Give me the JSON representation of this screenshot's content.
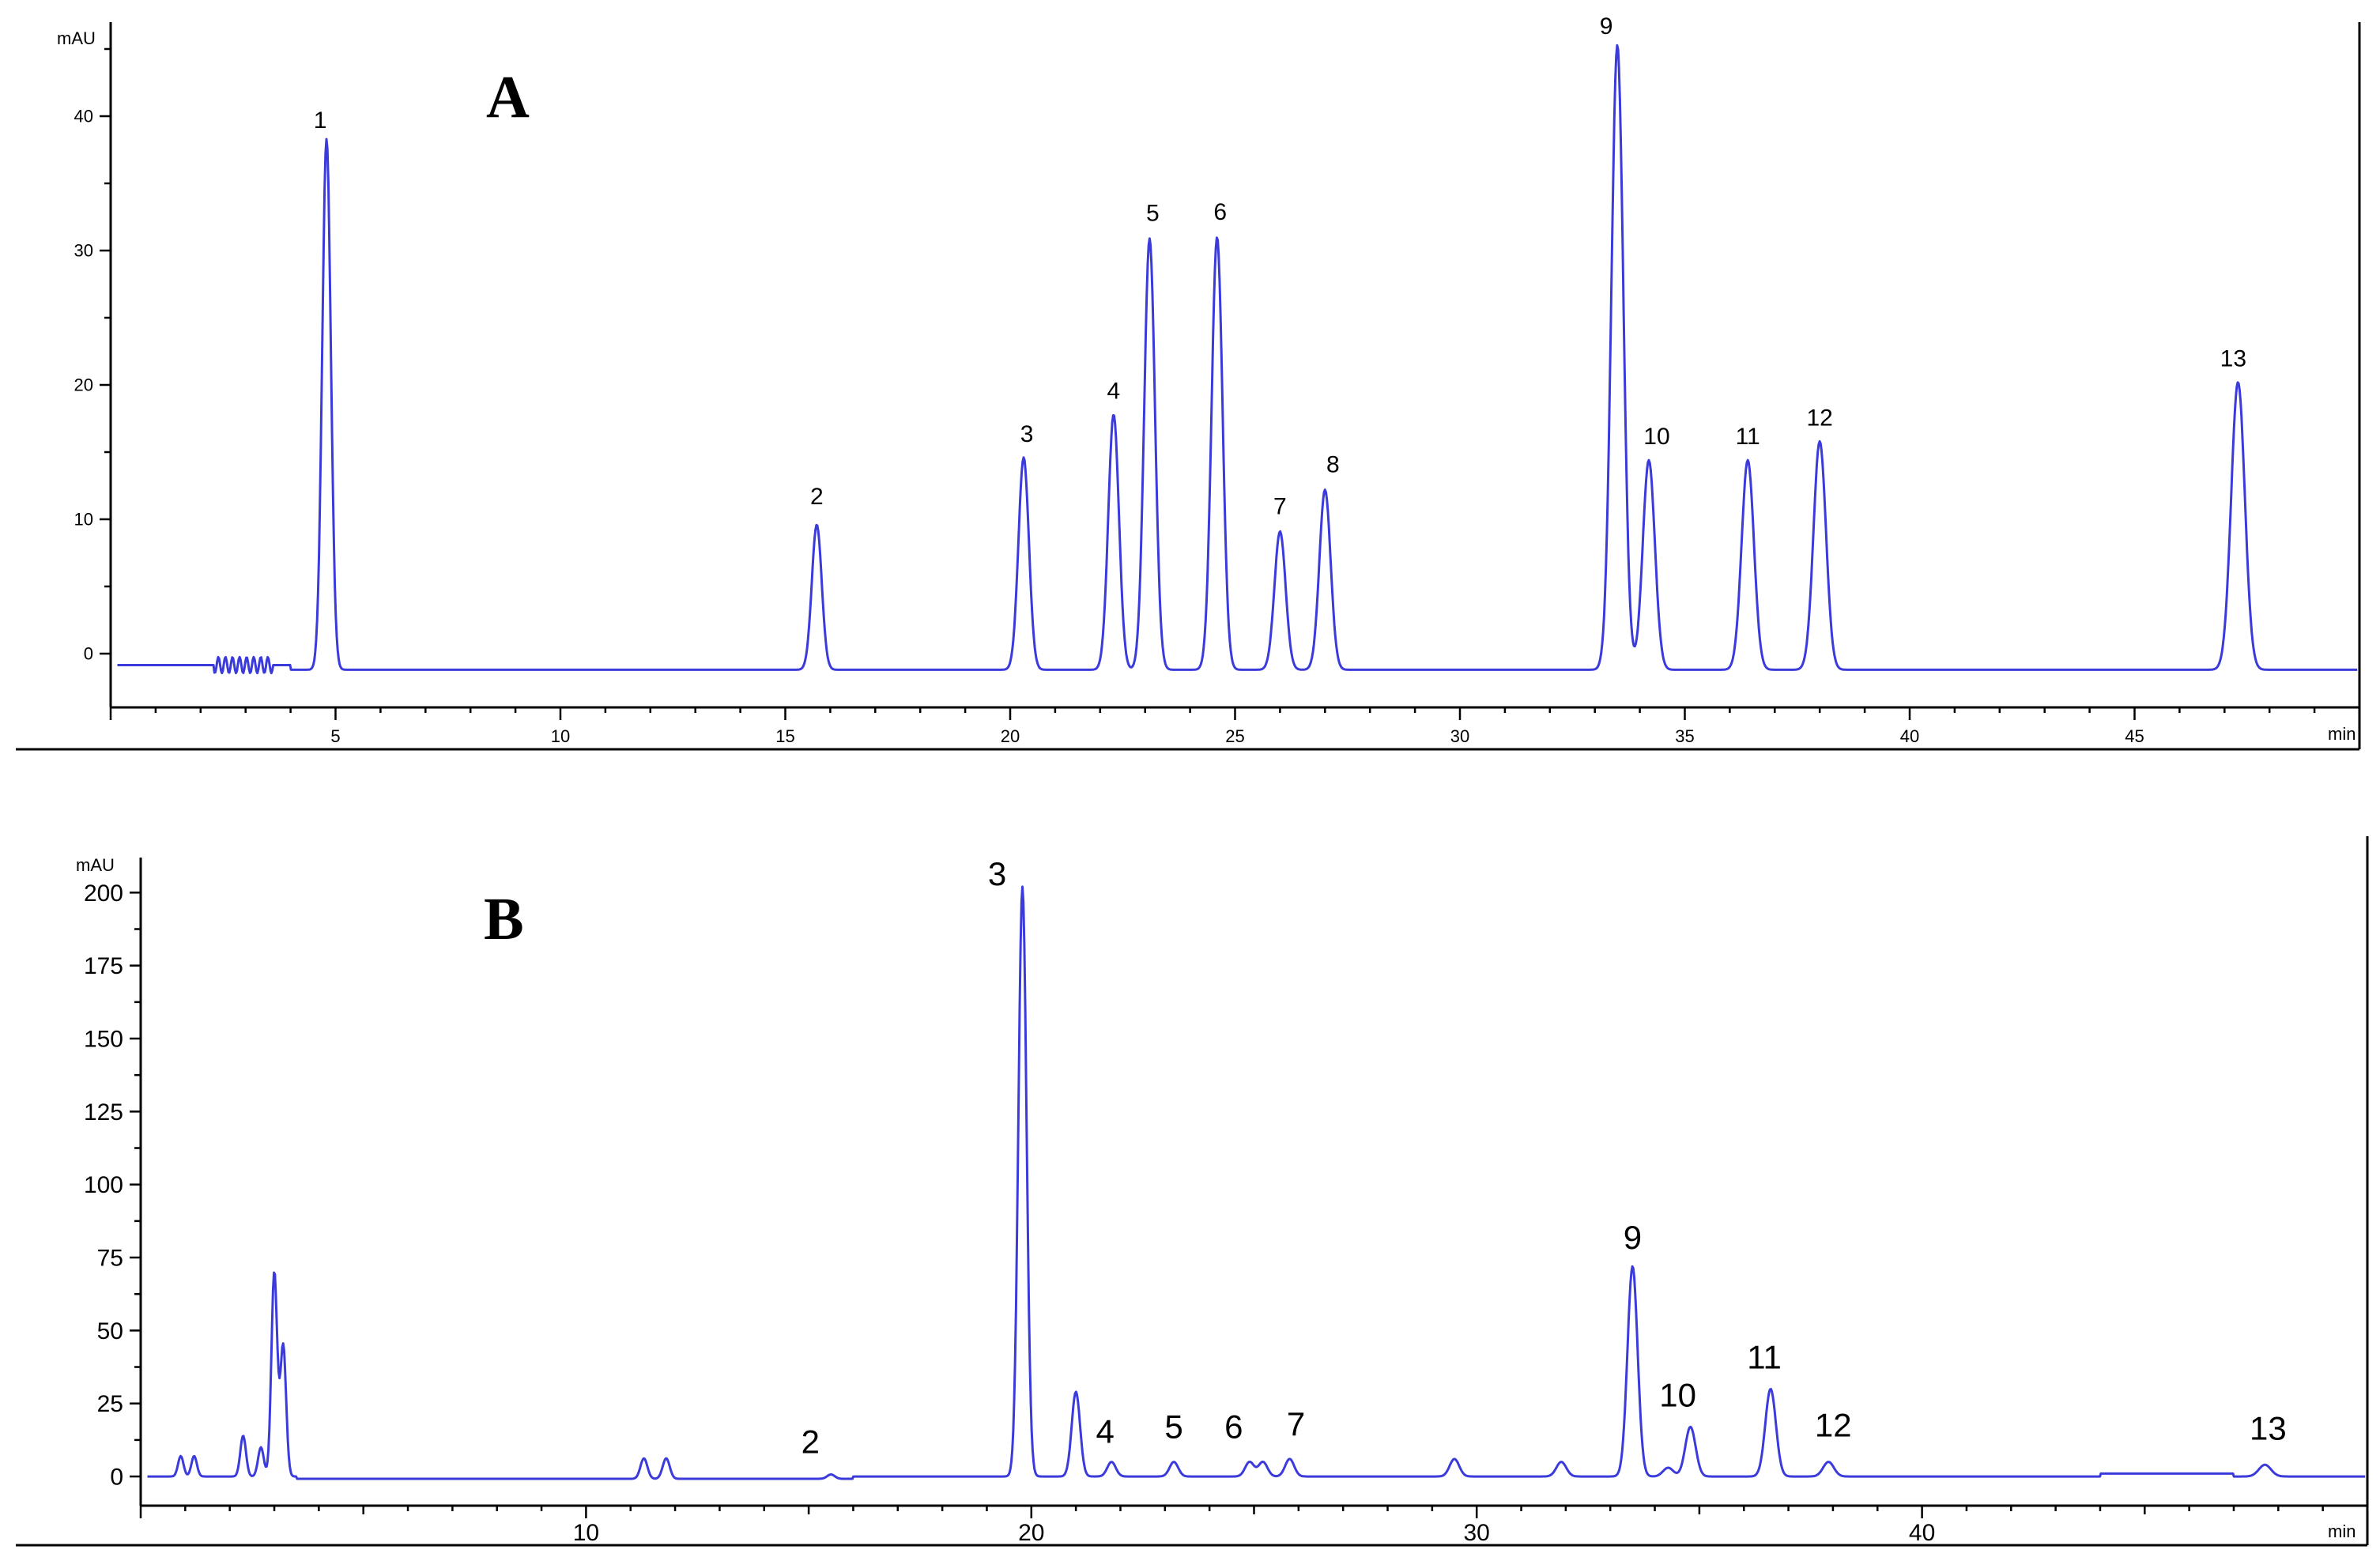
{
  "chart_data": [
    {
      "type": "line",
      "panel_label": "A",
      "ylabel": "mAU",
      "xlabel": "min",
      "xlim": [
        0,
        50
      ],
      "ylim": [
        -4,
        47
      ],
      "x_ticks": [
        5,
        10,
        15,
        20,
        25,
        30,
        35,
        40,
        45
      ],
      "y_ticks": [
        0,
        10,
        20,
        30,
        40
      ],
      "baseline": -1.2,
      "line_color": "#3b3bdc",
      "peaks": [
        {
          "label": "1",
          "x": 4.8,
          "y": 38.3
        },
        {
          "label": "2",
          "x": 15.7,
          "y": 9.6
        },
        {
          "label": "3",
          "x": 20.3,
          "y": 14.6
        },
        {
          "label": "4",
          "x": 22.3,
          "y": 17.8
        },
        {
          "label": "5",
          "x": 23.1,
          "y": 30.9
        },
        {
          "label": "6",
          "x": 24.6,
          "y": 31.0
        },
        {
          "label": "7",
          "x": 26.0,
          "y": 9.1
        },
        {
          "label": "8",
          "x": 27.0,
          "y": 12.2
        },
        {
          "label": "9",
          "x": 33.5,
          "y": 45.3
        },
        {
          "label": "10",
          "x": 34.2,
          "y": 14.4
        },
        {
          "label": "11",
          "x": 36.4,
          "y": 14.4
        },
        {
          "label": "12",
          "x": 38.0,
          "y": 15.8
        },
        {
          "label": "13",
          "x": 47.3,
          "y": 20.2
        }
      ]
    },
    {
      "type": "line",
      "panel_label": "B",
      "ylabel": "mAU",
      "xlabel": "min",
      "xlim": [
        0,
        50
      ],
      "ylim": [
        -10,
        212
      ],
      "x_ticks": [
        10,
        20,
        30,
        40
      ],
      "y_ticks": [
        0,
        25,
        50,
        75,
        100,
        125,
        150,
        175,
        200
      ],
      "baseline": 0,
      "line_color": "#3b3bdc",
      "peaks": [
        {
          "label": "2",
          "x": 15.5,
          "y": 1.5
        },
        {
          "label": "3",
          "x": 19.8,
          "y": 202
        },
        {
          "label": "4",
          "x": 21.8,
          "y": 5
        },
        {
          "label": "5",
          "x": 23.2,
          "y": 5
        },
        {
          "label": "6",
          "x": 24.9,
          "y": 5
        },
        {
          "label": "7",
          "x": 25.8,
          "y": 6
        },
        {
          "label": "9",
          "x": 33.5,
          "y": 72
        },
        {
          "label": "10",
          "x": 34.8,
          "y": 17
        },
        {
          "label": "11",
          "x": 36.6,
          "y": 30
        },
        {
          "label": "12",
          "x": 37.9,
          "y": 5
        },
        {
          "label": "13",
          "x": 47.7,
          "y": 4
        }
      ],
      "minor_peaks": [
        {
          "x": 0.9,
          "y": 7
        },
        {
          "x": 1.2,
          "y": 7
        },
        {
          "x": 2.3,
          "y": 14
        },
        {
          "x": 2.7,
          "y": 10
        },
        {
          "x": 3.0,
          "y": 70
        },
        {
          "x": 3.2,
          "y": 45
        },
        {
          "x": 11.3,
          "y": 7
        },
        {
          "x": 11.8,
          "y": 7
        },
        {
          "x": 21.0,
          "y": 29
        },
        {
          "x": 25.2,
          "y": 5
        },
        {
          "x": 29.5,
          "y": 6
        },
        {
          "x": 31.9,
          "y": 5
        },
        {
          "x": 34.3,
          "y": 3
        }
      ]
    }
  ]
}
